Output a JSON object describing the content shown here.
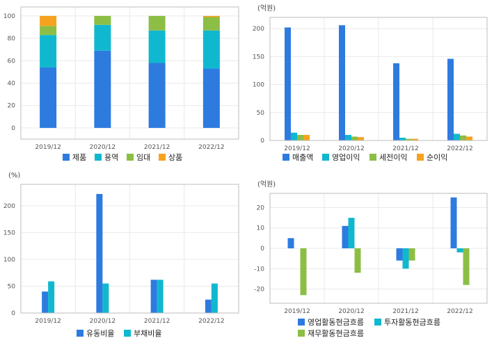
{
  "colors": {
    "blue": "#2E7BE0",
    "cyan": "#10B8CF",
    "green": "#8CBE45",
    "orange": "#F5A31E",
    "grid": "#e9e9e9",
    "frame": "#bdbdbd"
  },
  "chart_data": [
    {
      "id": "c1",
      "type": "bar",
      "stacked": true,
      "unit": "",
      "categories": [
        "2019/12",
        "2020/12",
        "2021/12",
        "2022/12"
      ],
      "yticks": [
        0,
        20,
        40,
        60,
        80,
        100
      ],
      "ylim": [
        -10,
        108
      ],
      "grid": true,
      "legend_position": "bottom",
      "series": [
        {
          "name": "제품",
          "color": "#2E7BE0",
          "values": [
            54,
            69,
            58,
            53
          ]
        },
        {
          "name": "용역",
          "color": "#10B8CF",
          "values": [
            29,
            23,
            29,
            34
          ]
        },
        {
          "name": "임대",
          "color": "#8CBE45",
          "values": [
            8,
            8,
            13,
            12
          ]
        },
        {
          "name": "상품",
          "color": "#F5A31E",
          "values": [
            9,
            0,
            0,
            1
          ]
        }
      ]
    },
    {
      "id": "c2",
      "type": "bar",
      "stacked": false,
      "unit": "(억원)",
      "categories": [
        "2019/12",
        "2020/12",
        "2021/12",
        "2022/12"
      ],
      "yticks": [
        0,
        50,
        100,
        150,
        200
      ],
      "ylim": [
        0,
        220
      ],
      "grid": true,
      "legend_position": "bottom",
      "series": [
        {
          "name": "매출액",
          "color": "#2E7BE0",
          "values": [
            202,
            206,
            138,
            146
          ]
        },
        {
          "name": "영업이익",
          "color": "#10B8CF",
          "values": [
            14,
            10,
            5,
            12
          ]
        },
        {
          "name": "세전이익",
          "color": "#8CBE45",
          "values": [
            10,
            7,
            3,
            9
          ]
        },
        {
          "name": "순이익",
          "color": "#F5A31E",
          "values": [
            10,
            6,
            3,
            7
          ]
        }
      ]
    },
    {
      "id": "c3",
      "type": "bar",
      "stacked": false,
      "unit": "(%)",
      "categories": [
        "2019/12",
        "2020/12",
        "2021/12",
        "2022/12"
      ],
      "yticks": [
        0,
        50,
        100,
        150,
        200
      ],
      "ylim": [
        0,
        240
      ],
      "grid": true,
      "legend_position": "bottom",
      "series": [
        {
          "name": "유동비율",
          "color": "#2E7BE0",
          "values": [
            40,
            222,
            62,
            25
          ]
        },
        {
          "name": "부채비율",
          "color": "#10B8CF",
          "values": [
            59,
            55,
            62,
            55
          ]
        }
      ]
    },
    {
      "id": "c4",
      "type": "bar",
      "stacked": false,
      "unit": "(억원)",
      "categories": [
        "2019/12",
        "2020/12",
        "2021/12",
        "2022/12"
      ],
      "yticks": [
        -20,
        -10,
        0,
        10,
        20
      ],
      "ylim": [
        -27,
        27
      ],
      "grid": true,
      "legend_position": "bottom",
      "series": [
        {
          "name": "영업활동현금흐름",
          "color": "#2E7BE0",
          "values": [
            5,
            11,
            -6,
            25
          ]
        },
        {
          "name": "투자활동현금흐름",
          "color": "#10B8CF",
          "values": [
            0,
            15,
            -10,
            -2
          ]
        },
        {
          "name": "재무활동현금흐름",
          "color": "#8CBE45",
          "values": [
            -23,
            -12,
            -6,
            -18
          ]
        }
      ]
    }
  ]
}
